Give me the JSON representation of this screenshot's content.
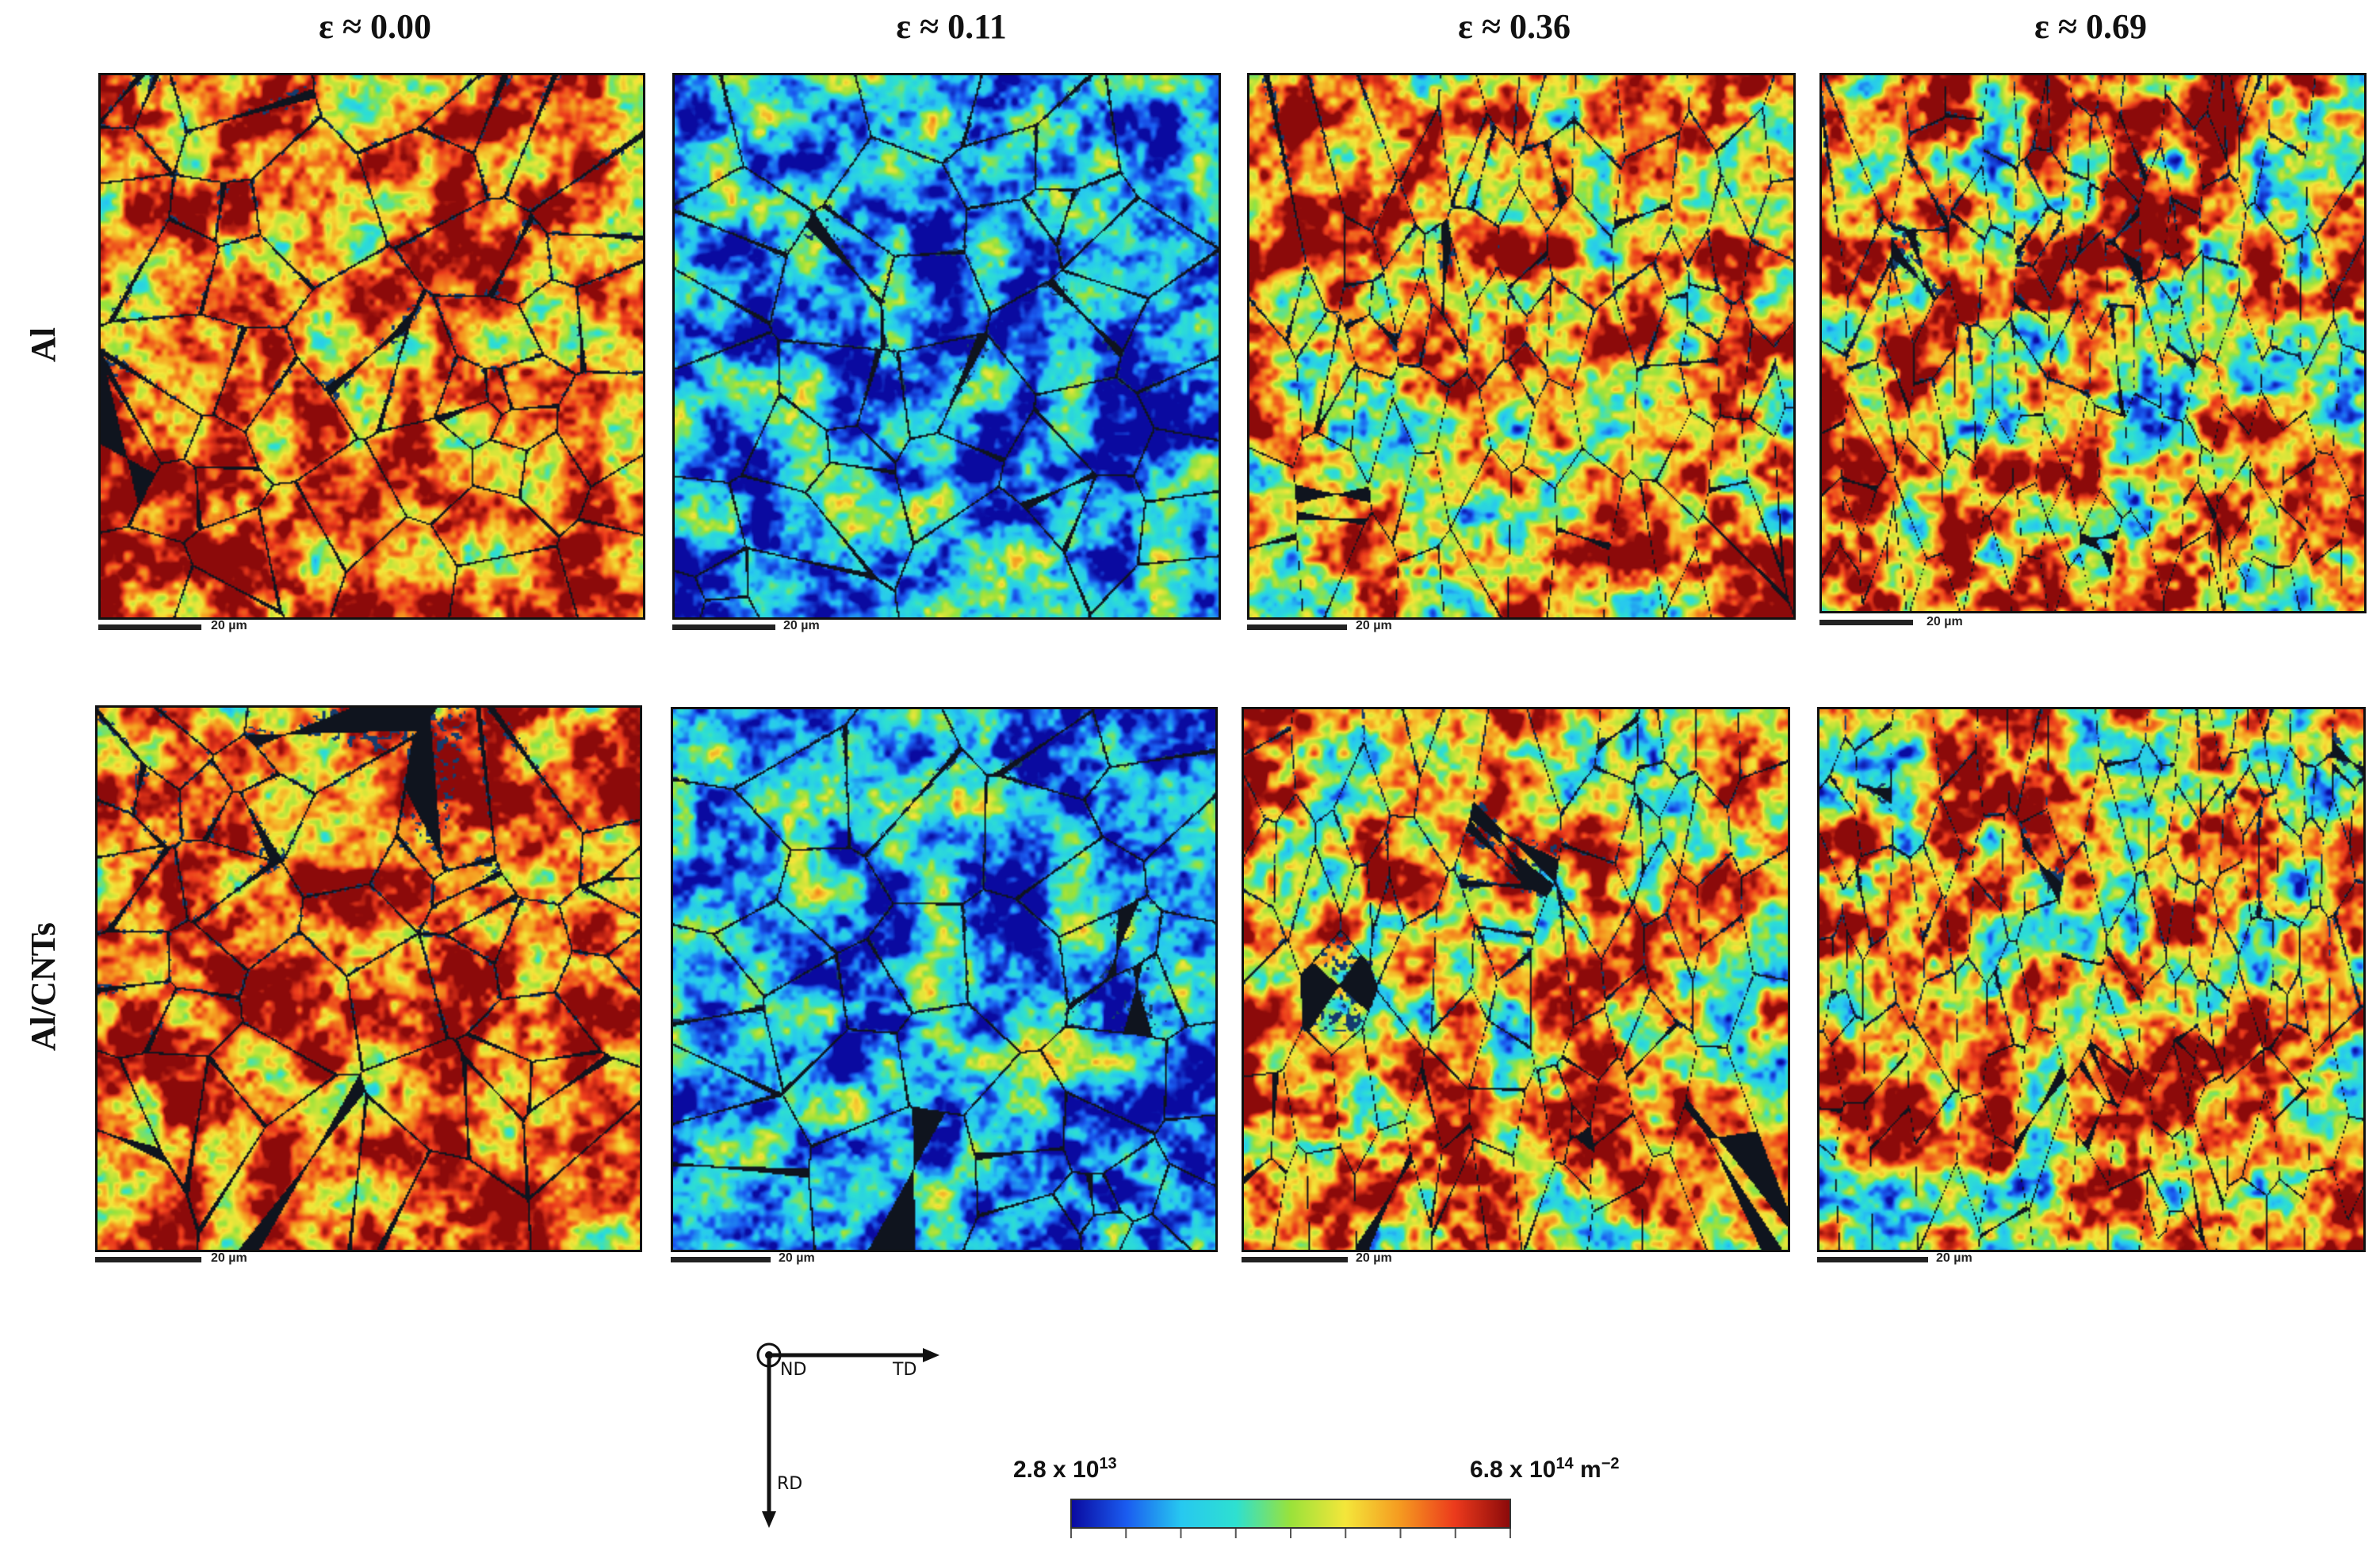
{
  "columns": [
    {
      "strain": "ε ≈ 0.00"
    },
    {
      "strain": "ε ≈ 0.11"
    },
    {
      "strain": "ε ≈ 0.36"
    },
    {
      "strain": "ε ≈ 0.69"
    }
  ],
  "rows": [
    {
      "label": "Al"
    },
    {
      "label": "Al/CNTs"
    }
  ],
  "scale_bar_label": "20 µm",
  "axes": {
    "origin": "ND",
    "horizontal": "TD",
    "vertical": "RD"
  },
  "legend": {
    "min_label": "2.8 x 10",
    "min_exp": "13",
    "max_label": "6.8 x 10",
    "max_exp": "14",
    "unit": "m",
    "unit_exp": "−2",
    "colors": [
      "#0a0aa0",
      "#1a5cf0",
      "#27c8f0",
      "#2ee0d0",
      "#9ae23a",
      "#f4e63a",
      "#f59a20",
      "#ec3a1c",
      "#8c0a0a"
    ]
  },
  "maps": [
    {
      "row": "Al",
      "strain": "ε ≈ 0.00",
      "palette": "warm"
    },
    {
      "row": "Al",
      "strain": "ε ≈ 0.11",
      "palette": "cool"
    },
    {
      "row": "Al",
      "strain": "ε ≈ 0.36",
      "palette": "warm-dense"
    },
    {
      "row": "Al",
      "strain": "ε ≈ 0.69",
      "palette": "warm-denser"
    },
    {
      "row": "Al/CNTs",
      "strain": "ε ≈ 0.00",
      "palette": "warm"
    },
    {
      "row": "Al/CNTs",
      "strain": "ε ≈ 0.11",
      "palette": "cool"
    },
    {
      "row": "Al/CNTs",
      "strain": "ε ≈ 0.36",
      "palette": "warm-dense"
    },
    {
      "row": "Al/CNTs",
      "strain": "ε ≈ 0.69",
      "palette": "warm-denser"
    }
  ]
}
